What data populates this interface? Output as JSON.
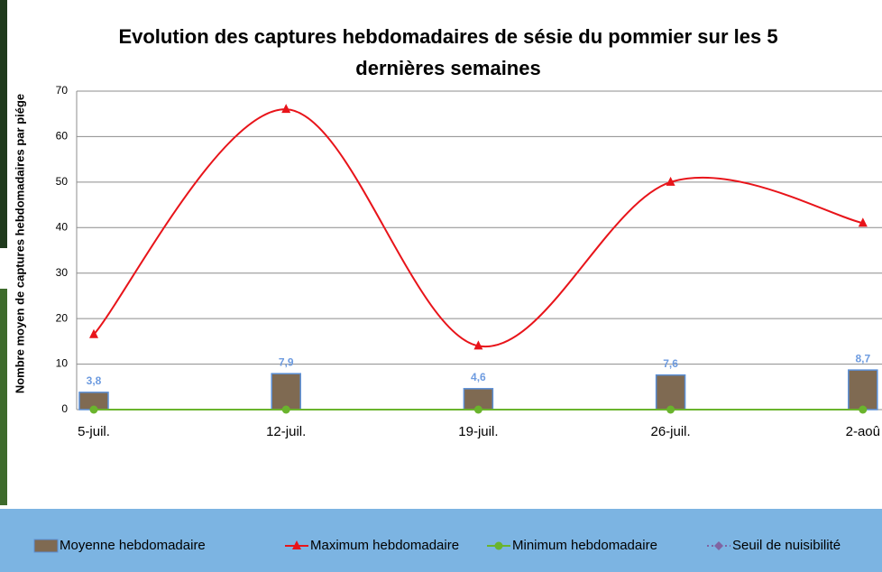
{
  "chart_data": {
    "type": "bar-line",
    "title_lines": [
      "Evolution des captures hebdomadaires de sésie du pommier sur les 5",
      "dernières semaines"
    ],
    "y_label": "Nombre moyen de captures hebdomadaires par piége",
    "categories": [
      "5-juil.",
      "12-juil.",
      "19-juil.",
      "26-juil.",
      "2-aoû"
    ],
    "ylim": [
      0,
      70
    ],
    "yticks": [
      0,
      10,
      20,
      30,
      40,
      50,
      60,
      70
    ],
    "grid": true,
    "series": [
      {
        "name": "Moyenne hebdomadaire",
        "type": "bar",
        "color": "#7f6a52",
        "values": [
          3.8,
          7.9,
          4.6,
          7.6,
          8.7
        ],
        "value_labels": [
          "3,8",
          "7,9",
          "4,6",
          "7,6",
          "8,7"
        ]
      },
      {
        "name": "Maximum hebdomadaire",
        "type": "line",
        "marker": "triangle",
        "color": "#e8141a",
        "values": [
          16.5,
          66,
          14,
          50,
          41
        ]
      },
      {
        "name": "Minimum hebdomadaire",
        "type": "line",
        "marker": "circle",
        "color": "#6ab42d",
        "values": [
          0,
          0,
          0,
          0,
          0
        ]
      },
      {
        "name": "Seuil de nuisibilité",
        "type": "line",
        "marker": "diamond",
        "color": "#8064a2",
        "dashed": true,
        "values": [
          null,
          null,
          null,
          null,
          null
        ]
      }
    ]
  }
}
